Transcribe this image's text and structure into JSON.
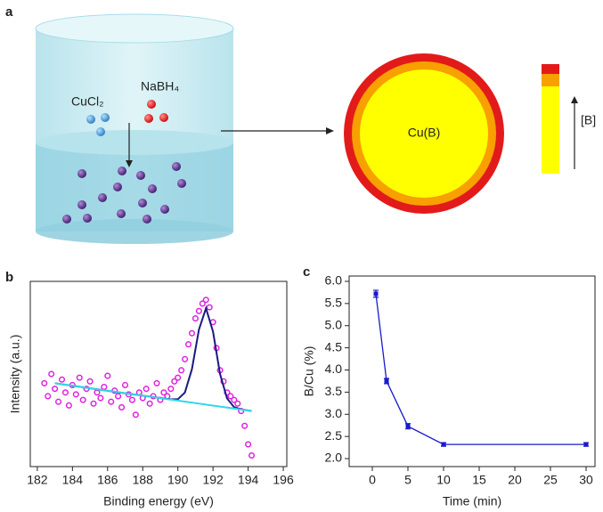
{
  "diagram": {
    "panel_label": "a",
    "reactant_1": "CuCl₂",
    "reactant_2": "NaBH₄",
    "particle_label": "Cu(B)",
    "gradient_label": "[B]"
  },
  "chart_data": [
    {
      "type": "scatter",
      "panel_label": "b",
      "xlabel": "Binding energy (eV)",
      "ylabel": "Intensity (a.u.)",
      "x": [
        182.4,
        182.6,
        182.8,
        183.0,
        183.2,
        183.4,
        183.6,
        183.8,
        184.0,
        184.2,
        184.4,
        184.6,
        184.8,
        185.0,
        185.2,
        185.4,
        185.6,
        185.8,
        186.0,
        186.2,
        186.4,
        186.6,
        186.8,
        187.0,
        187.2,
        187.4,
        187.6,
        187.8,
        188.0,
        188.2,
        188.4,
        188.6,
        188.8,
        189.0,
        189.2,
        189.4,
        189.6,
        189.8,
        190.0,
        190.2,
        190.4,
        190.6,
        190.8,
        191.0,
        191.2,
        191.4,
        191.6,
        191.8,
        192.0,
        192.2,
        192.4,
        192.6,
        192.8,
        193.0,
        193.2,
        193.4,
        193.6,
        193.8,
        194.0,
        194.2
      ],
      "values": [
        45,
        38,
        50,
        42,
        35,
        47,
        40,
        33,
        44,
        39,
        48,
        36,
        42,
        46,
        34,
        40,
        37,
        43,
        49,
        35,
        41,
        38,
        32,
        44,
        39,
        36,
        28,
        40,
        37,
        42,
        34,
        38,
        45,
        36,
        40,
        38,
        42,
        46,
        48,
        52,
        58,
        66,
        72,
        80,
        84,
        88,
        90,
        86,
        78,
        64,
        52,
        46,
        40,
        38,
        36,
        34,
        30,
        22,
        12,
        6
      ],
      "color": "#e020e0",
      "lines": [
        {
          "color": "#1a1a80",
          "x": [
            183,
            185,
            187,
            189,
            189.6,
            190,
            190.4,
            190.8,
            191.2,
            191.6,
            192,
            192.4,
            192.8,
            193.2,
            193.6,
            194.2
          ],
          "values": [
            45,
            42.3,
            39.6,
            37,
            36.3,
            36.4,
            40,
            52.6,
            74,
            85.5,
            72.9,
            50,
            36.8,
            32.1,
            30.9,
            30
          ]
        },
        {
          "color": "#30d8e8",
          "x": [
            183,
            194.2
          ],
          "values": [
            45,
            30
          ]
        }
      ],
      "xlim": [
        181.6,
        196.2
      ],
      "ylim": [
        0,
        100
      ],
      "xticks": [
        182,
        184,
        186,
        188,
        190,
        192,
        194,
        196
      ]
    },
    {
      "type": "line",
      "panel_label": "c",
      "xlabel": "Time (min)",
      "ylabel": "B/Cu (%)",
      "x": [
        0.5,
        2,
        5,
        10,
        30
      ],
      "values": [
        5.72,
        3.75,
        2.73,
        2.32,
        2.32
      ],
      "errors": [
        0.08,
        0.06,
        0.06,
        0.04,
        0.04
      ],
      "color": "#1a1acd",
      "xlim": [
        -3.25,
        31.25
      ],
      "ylim": [
        1.82,
        6.12
      ],
      "xticks": [
        0,
        5,
        10,
        15,
        20,
        25,
        30
      ],
      "yticks": [
        {
          "value": 2,
          "label": "2.0"
        },
        {
          "value": 2.5,
          "label": "2.5"
        },
        {
          "value": 3,
          "label": "3.0"
        },
        {
          "value": 3.5,
          "label": "3.5"
        },
        {
          "value": 4,
          "label": "4.0"
        },
        {
          "value": 4.5,
          "label": "4.5"
        },
        {
          "value": 5,
          "label": "5.0"
        },
        {
          "value": 5.5,
          "label": "5.5"
        },
        {
          "value": 6,
          "label": "6.0"
        }
      ]
    }
  ]
}
